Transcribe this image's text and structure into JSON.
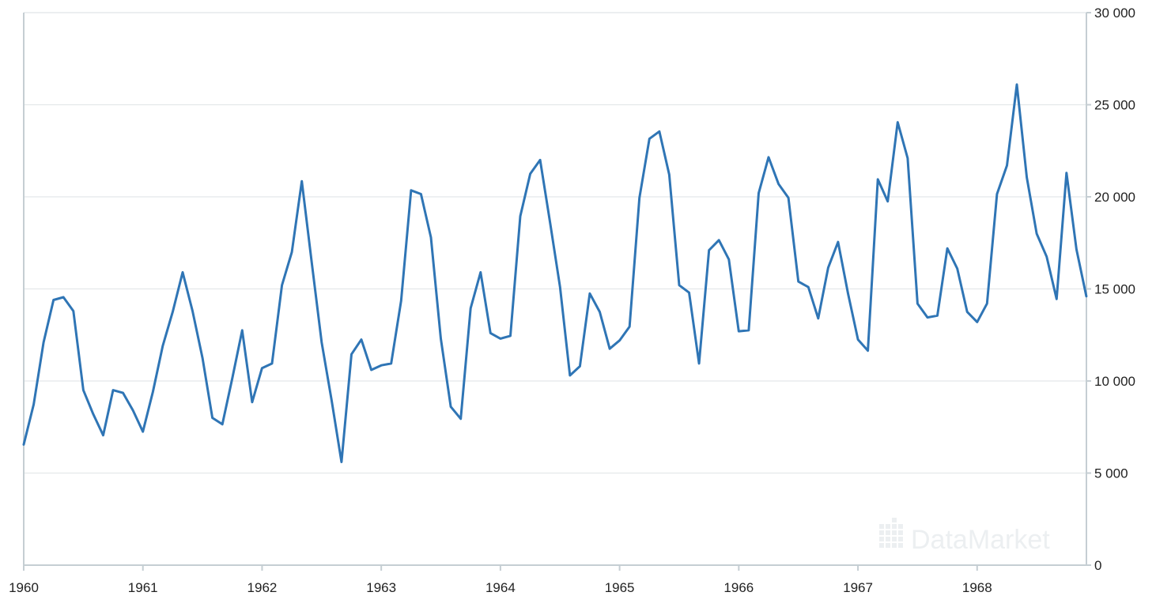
{
  "chart_data": {
    "type": "line",
    "title": "",
    "xlabel": "",
    "ylabel": "",
    "x_start": 1960,
    "x_end": 1968.917,
    "xlim": [
      1960,
      1968.917
    ],
    "ylim": [
      0,
      30000
    ],
    "y_axis_position": "right",
    "grid": true,
    "legend": "none",
    "x_ticks": [
      {
        "value": 1960,
        "label": "1960"
      },
      {
        "value": 1961,
        "label": "1961"
      },
      {
        "value": 1962,
        "label": "1962"
      },
      {
        "value": 1963,
        "label": "1963"
      },
      {
        "value": 1964,
        "label": "1964"
      },
      {
        "value": 1965,
        "label": "1965"
      },
      {
        "value": 1966,
        "label": "1966"
      },
      {
        "value": 1967,
        "label": "1967"
      },
      {
        "value": 1968,
        "label": "1968"
      }
    ],
    "y_ticks": [
      {
        "value": 0,
        "label": "0"
      },
      {
        "value": 5000,
        "label": "5 000"
      },
      {
        "value": 10000,
        "label": "10 000"
      },
      {
        "value": 15000,
        "label": "15 000"
      },
      {
        "value": 20000,
        "label": "20 000"
      },
      {
        "value": 25000,
        "label": "25 000"
      },
      {
        "value": 30000,
        "label": "30 000"
      }
    ],
    "series": [
      {
        "color": "#2f75b5",
        "frequency": "monthly",
        "start": "1960-01",
        "values": [
          6550,
          8730,
          12100,
          14400,
          14550,
          13800,
          9500,
          8200,
          7050,
          9500,
          9350,
          8400,
          7250,
          9400,
          11900,
          13750,
          15900,
          13800,
          11250,
          8000,
          7650,
          10150,
          12750,
          8850,
          10700,
          10950,
          15200,
          17000,
          20850,
          16450,
          12100,
          8950,
          5600,
          11450,
          12250,
          10600,
          10850,
          10950,
          14350,
          20350,
          20150,
          17800,
          12300,
          8600,
          7950,
          13950,
          15900,
          12600,
          12300,
          12450,
          18950,
          21250,
          22000,
          18600,
          15100,
          10300,
          10800,
          14750,
          13750,
          11750,
          12200,
          12950,
          19950,
          23150,
          23550,
          21200,
          15200,
          14800,
          10950,
          17100,
          17650,
          16600,
          12700,
          12750,
          20200,
          22150,
          20700,
          19950,
          15400,
          15100,
          13400,
          16150,
          17550,
          14750,
          12250,
          11650,
          20950,
          19750,
          24050,
          22100,
          14200,
          13450,
          13550,
          17200,
          16100,
          13750,
          13200,
          14200,
          20150,
          21700,
          26100,
          21050,
          18000,
          16750,
          14450,
          21300,
          17150,
          14600
        ]
      }
    ]
  },
  "watermark": {
    "text": "DataMarket"
  },
  "colors": {
    "line": "#2f75b5",
    "grid": "#e4e8ea",
    "axis": "#c5ced3",
    "text": "#222222",
    "watermark": "#eceff1"
  }
}
